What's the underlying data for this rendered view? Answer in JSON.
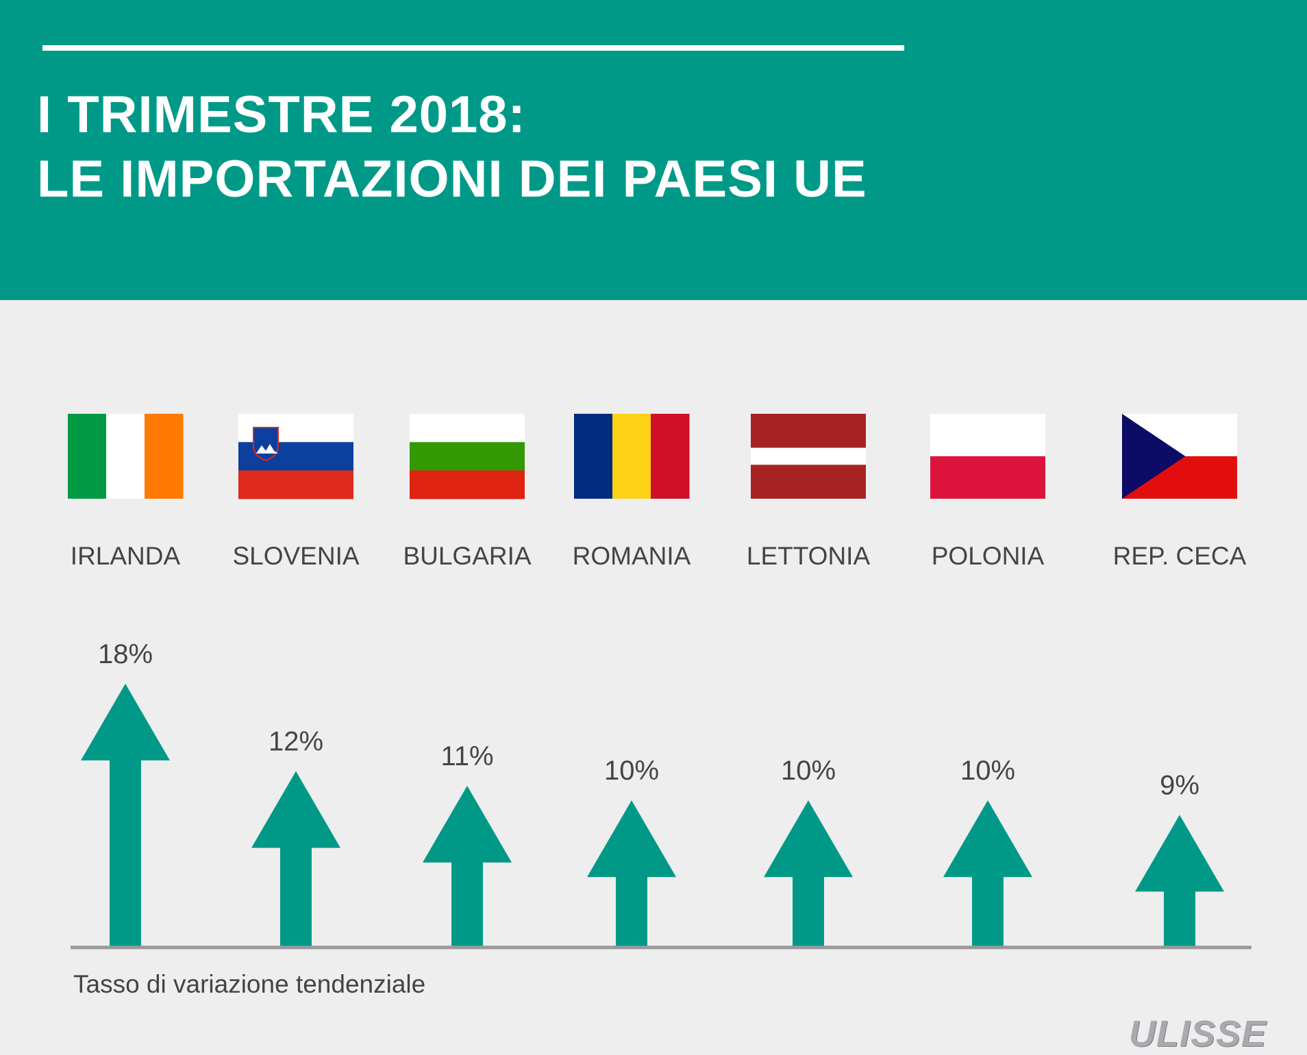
{
  "header": {
    "title_line1": "I TRIMESTRE 2018:",
    "title_line2": "LE IMPORTAZIONI DEI PAESI UE"
  },
  "colors": {
    "accent": "#009988",
    "background": "#eeeeee",
    "text": "#444444",
    "axis": "#999999"
  },
  "chart_data": {
    "type": "bar",
    "title": "I TRIMESTRE 2018: LE IMPORTAZIONI DEI PAESI UE",
    "xlabel": "",
    "ylabel": "Tasso di variazione tendenziale",
    "categories": [
      "IRLANDA",
      "SLOVENIA",
      "BULGARIA",
      "ROMANIA",
      "LETTONIA",
      "POLONIA",
      "REP. CECA"
    ],
    "values": [
      18,
      12,
      11,
      10,
      10,
      10,
      9
    ],
    "value_labels": [
      "18%",
      "12%",
      "11%",
      "10%",
      "10%",
      "10%",
      "9%"
    ],
    "unit": "%",
    "mark": "arrow-up",
    "ylim": [
      0,
      18
    ]
  },
  "flags": [
    {
      "country": "IRLANDA",
      "icon": "flag-ireland-icon",
      "kind": "v3",
      "colors": [
        "#009a44",
        "#ffffff",
        "#ff7900"
      ]
    },
    {
      "country": "SLOVENIA",
      "icon": "flag-slovenia-icon",
      "kind": "h3-crest",
      "colors": [
        "#ffffff",
        "#0c3f9e",
        "#df2a1c"
      ]
    },
    {
      "country": "BULGARIA",
      "icon": "flag-bulgaria-icon",
      "kind": "h3",
      "colors": [
        "#ffffff",
        "#339903",
        "#de2311"
      ]
    },
    {
      "country": "ROMANIA",
      "icon": "flag-romania-icon",
      "kind": "v3",
      "colors": [
        "#002b7f",
        "#fcd116",
        "#ce1126"
      ]
    },
    {
      "country": "LETTONIA",
      "icon": "flag-latvia-icon",
      "kind": "latvia",
      "colors": [
        "#a52422",
        "#ffffff",
        "#a52422"
      ]
    },
    {
      "country": "POLONIA",
      "icon": "flag-poland-icon",
      "kind": "h2",
      "colors": [
        "#ffffff",
        "#dc143c"
      ]
    },
    {
      "country": "REP. CECA",
      "icon": "flag-czechia-icon",
      "kind": "czech",
      "colors": [
        "#ffffff",
        "#e20e0e",
        "#0c0c66"
      ]
    }
  ],
  "axis_caption": "Tasso di variazione tendenziale",
  "logo": "ULISSE"
}
